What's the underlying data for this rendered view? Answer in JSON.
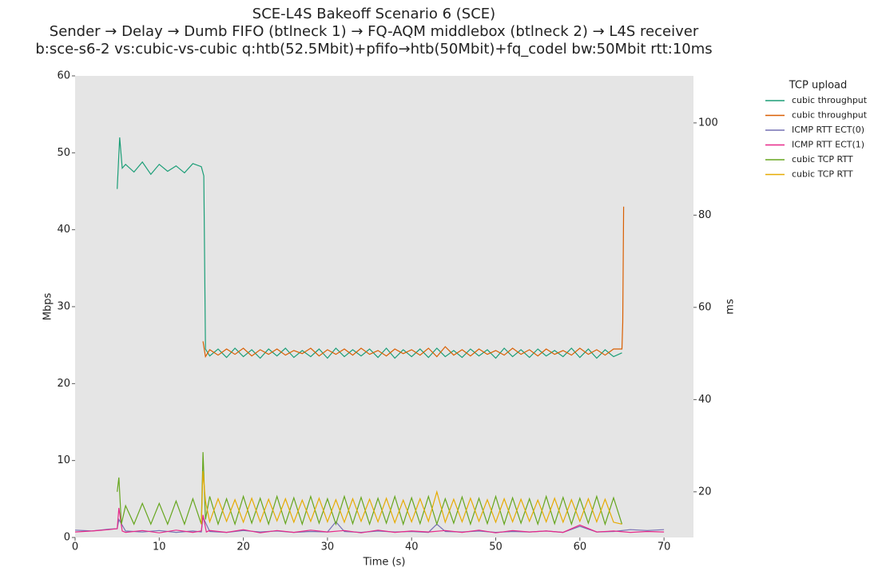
{
  "chart_data": {
    "type": "line",
    "title": "SCE-L4S Bakeoff Scenario 6 (SCE)",
    "subtitle": "Sender → Delay → Dumb FIFO (btlneck 1) → FQ-AQM middlebox (btlneck 2) → L4S receiver",
    "subtitle2": "b:sce-s6-2 vs:cubic-vs-cubic q:htb(52.5Mbit)+pfifo→htb(50Mbit)+fq_codel bw:50Mbit rtt:10ms",
    "xlabel": "Time (s)",
    "ylabel": "Mbps",
    "y2label": "ms",
    "legend_title": "TCP upload",
    "legend": "outside-upper-right",
    "grid": false,
    "xlim": [
      0,
      73.5
    ],
    "xticks": [
      0,
      10,
      20,
      30,
      40,
      50,
      60,
      70
    ],
    "ylim": [
      0,
      60
    ],
    "yticks": [
      0,
      10,
      20,
      30,
      40,
      50,
      60
    ],
    "y2lim": [
      10.1,
      110.2
    ],
    "y2ticks": [
      20,
      40,
      60,
      80,
      100
    ],
    "series": [
      {
        "name": "cubic throughput",
        "color": "#1b9e77",
        "axis": "y",
        "x": [
          5,
          5.3,
          5.6,
          6,
          7,
          8,
          9,
          10,
          11,
          12,
          13,
          14,
          15,
          15.3,
          15.5,
          16,
          17,
          18,
          19,
          20,
          21,
          22,
          23,
          24,
          25,
          26,
          27,
          28,
          29,
          30,
          31,
          32,
          33,
          34,
          35,
          36,
          37,
          38,
          39,
          40,
          41,
          42,
          43,
          44,
          45,
          46,
          47,
          48,
          49,
          50,
          51,
          52,
          53,
          54,
          55,
          56,
          57,
          58,
          59,
          60,
          61,
          62,
          63,
          64,
          65
        ],
        "values": [
          45.3,
          52,
          48,
          48.5,
          47.5,
          48.8,
          47.2,
          48.5,
          47.6,
          48.3,
          47.4,
          48.6,
          48.2,
          47,
          24.5,
          23.6,
          24.5,
          23.4,
          24.6,
          23.5,
          24.4,
          23.3,
          24.5,
          23.6,
          24.6,
          23.4,
          24.3,
          23.5,
          24.5,
          23.3,
          24.6,
          23.5,
          24.4,
          23.6,
          24.5,
          23.4,
          24.6,
          23.3,
          24.4,
          23.5,
          24.5,
          23.4,
          24.6,
          23.5,
          24.3,
          23.4,
          24.5,
          23.6,
          24.4,
          23.3,
          24.6,
          23.5,
          24.4,
          23.4,
          24.5,
          23.6,
          24.3,
          23.5,
          24.6,
          23.4,
          24.5,
          23.3,
          24.4,
          23.5,
          24
        ]
      },
      {
        "name": "cubic throughput",
        "color": "#d95f02",
        "axis": "y",
        "x": [
          15.2,
          15.5,
          16,
          17,
          18,
          19,
          20,
          21,
          22,
          23,
          24,
          25,
          26,
          27,
          28,
          29,
          30,
          31,
          32,
          33,
          34,
          35,
          36,
          37,
          38,
          39,
          40,
          41,
          42,
          43,
          44,
          45,
          46,
          47,
          48,
          49,
          50,
          51,
          52,
          53,
          54,
          55,
          56,
          57,
          58,
          59,
          60,
          61,
          62,
          63,
          64,
          65,
          65.1,
          65.2
        ],
        "values": [
          25.5,
          23.5,
          24.4,
          23.7,
          24.5,
          23.8,
          24.6,
          23.6,
          24.4,
          23.8,
          24.5,
          23.7,
          24.3,
          23.9,
          24.6,
          23.6,
          24.4,
          23.8,
          24.5,
          23.7,
          24.6,
          23.8,
          24.3,
          23.6,
          24.5,
          23.9,
          24.4,
          23.7,
          24.6,
          23.5,
          24.8,
          23.7,
          24.4,
          23.6,
          24.5,
          23.8,
          24.3,
          23.7,
          24.6,
          23.8,
          24.4,
          23.6,
          24.5,
          23.8,
          24.3,
          23.7,
          24.6,
          23.8,
          24.4,
          23.7,
          24.5,
          24.5,
          28,
          43
        ]
      },
      {
        "name": "ICMP RTT ECT(0)",
        "color": "#7570b3",
        "axis": "y2",
        "x": [
          0,
          2,
          4,
          5,
          5.2,
          6,
          8,
          10,
          12,
          14,
          15,
          15.2,
          16,
          18,
          20,
          22,
          24,
          26,
          28,
          30,
          31,
          32,
          34,
          36,
          38,
          40,
          42,
          43,
          44,
          46,
          48,
          50,
          52,
          54,
          56,
          58,
          60,
          62,
          64,
          66,
          68,
          70
        ],
        "values": [
          11.7,
          11.5,
          11.9,
          12,
          14,
          11.5,
          11.3,
          11.6,
          11.2,
          11.5,
          11.3,
          14.5,
          11.4,
          11.2,
          11.6,
          11.3,
          11.5,
          11.2,
          11.4,
          11.3,
          13.5,
          11.4,
          11.2,
          11.5,
          11.3,
          11.4,
          11.2,
          13,
          11.4,
          11.3,
          11.5,
          11.2,
          11.4,
          11.3,
          11.5,
          11.2,
          12.5,
          11.3,
          11.4,
          11.8,
          11.6,
          11.8
        ]
      },
      {
        "name": "ICMP RTT ECT(1)",
        "color": "#e7298a",
        "axis": "y2",
        "x": [
          0,
          2,
          4,
          5,
          5.2,
          5.6,
          6,
          8,
          10,
          12,
          14,
          15,
          15.2,
          15.6,
          16,
          18,
          20,
          22,
          24,
          26,
          28,
          30,
          32,
          34,
          36,
          38,
          40,
          42,
          44,
          46,
          48,
          50,
          52,
          54,
          56,
          58,
          60,
          62,
          64,
          66,
          68,
          70
        ],
        "values": [
          11.3,
          11.5,
          11.8,
          12,
          16.5,
          11.5,
          11.2,
          11.6,
          11.1,
          11.7,
          11.2,
          11.5,
          15,
          11.3,
          11.6,
          11.2,
          11.8,
          11.1,
          11.6,
          11.2,
          11.7,
          11.3,
          11.6,
          11.1,
          11.7,
          11.2,
          11.5,
          11.3,
          11.6,
          11.2,
          11.7,
          11.1,
          11.6,
          11.3,
          11.5,
          11.2,
          12.8,
          11.3,
          11.5,
          11.2,
          11.4,
          11.3
        ]
      },
      {
        "name": "cubic TCP RTT",
        "color": "#66a61e",
        "axis": "y2",
        "x": [
          5,
          5.2,
          5.5,
          6,
          7,
          8,
          9,
          10,
          11,
          12,
          13,
          14,
          15,
          15.2,
          15.5,
          16,
          17,
          18,
          19,
          20,
          21,
          22,
          23,
          24,
          25,
          26,
          27,
          28,
          29,
          30,
          31,
          32,
          33,
          34,
          35,
          36,
          37,
          38,
          39,
          40,
          41,
          42,
          43,
          44,
          45,
          46,
          47,
          48,
          49,
          50,
          51,
          52,
          53,
          54,
          55,
          56,
          57,
          58,
          59,
          60,
          61,
          62,
          63,
          64,
          65
        ],
        "values": [
          20,
          23.1,
          13,
          17,
          13,
          17.5,
          13,
          17.5,
          13,
          18,
          13,
          18.5,
          13,
          28.6,
          14,
          19,
          13,
          18.5,
          13,
          19,
          13.2,
          18.6,
          13,
          19,
          13.1,
          18.7,
          13,
          19,
          13.2,
          18.5,
          13,
          19,
          13.1,
          18.8,
          13,
          18.6,
          13.2,
          19,
          13,
          18.7,
          13.1,
          19,
          13,
          18.5,
          13.2,
          18.9,
          13,
          18.6,
          13.1,
          19,
          13,
          18.7,
          13.2,
          18.5,
          13,
          19,
          13.1,
          18.8,
          13,
          18.6,
          13.2,
          19,
          13,
          18.7,
          13
        ]
      },
      {
        "name": "cubic TCP RTT",
        "color": "#e6ab02",
        "axis": "y2",
        "x": [
          15,
          15.2,
          15.5,
          16,
          17,
          18,
          19,
          20,
          21,
          22,
          23,
          24,
          25,
          26,
          27,
          28,
          29,
          30,
          31,
          32,
          33,
          34,
          35,
          36,
          37,
          38,
          39,
          40,
          41,
          42,
          43,
          44,
          45,
          46,
          47,
          48,
          49,
          50,
          51,
          52,
          53,
          54,
          55,
          56,
          57,
          58,
          59,
          60,
          61,
          62,
          63,
          64,
          65
        ],
        "values": [
          13,
          24.5,
          18,
          13.5,
          18.5,
          13.6,
          18.3,
          13.4,
          18.6,
          13.5,
          18.4,
          13.7,
          18.5,
          13.4,
          18.2,
          13.6,
          18.6,
          13.5,
          18.3,
          13.4,
          18.5,
          13.6,
          18.4,
          13.5,
          18.6,
          13.3,
          18.2,
          13.5,
          18.5,
          13.6,
          20,
          13.4,
          18.4,
          13.5,
          18.6,
          13.6,
          18.3,
          13.4,
          18.5,
          13.5,
          18.4,
          13.6,
          18.2,
          13.5,
          18.6,
          13.4,
          18.3,
          13.6,
          18.5,
          13.5,
          18.4,
          13.4,
          13
        ]
      }
    ]
  }
}
